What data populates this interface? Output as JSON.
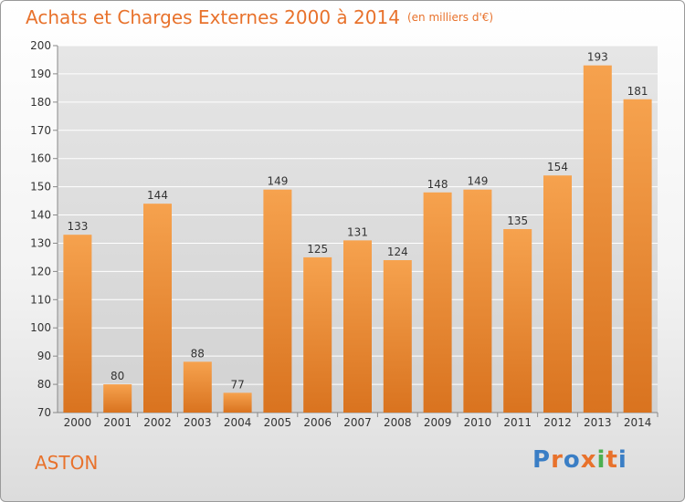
{
  "header": {
    "title": "Achats et Charges Externes 2000 à 2014",
    "subtitle": "(en milliers d'€)"
  },
  "footer": {
    "city": "ASTON",
    "logo": [
      "P",
      "r",
      "o",
      "x",
      "i",
      "t",
      "i"
    ],
    "logo_colors": [
      "#3a7ec5",
      "#e8722c",
      "#3a7ec5",
      "#e8722c",
      "#4caf50",
      "#e8722c",
      "#3a7ec5"
    ]
  },
  "colors": {
    "accent": "#e8722c",
    "bar_top": "#f6a24e",
    "bar_bottom": "#d9731f",
    "grid": "#ffffff",
    "axis_text": "#333333"
  },
  "chart_data": {
    "type": "bar",
    "categories": [
      "2000",
      "2001",
      "2002",
      "2003",
      "2004",
      "2005",
      "2006",
      "2007",
      "2008",
      "2009",
      "2010",
      "2011",
      "2012",
      "2013",
      "2014"
    ],
    "values": [
      133,
      80,
      144,
      88,
      77,
      149,
      125,
      131,
      124,
      148,
      149,
      135,
      154,
      193,
      181
    ],
    "ylim": [
      70,
      200
    ],
    "yticks": [
      70,
      80,
      90,
      100,
      110,
      120,
      130,
      140,
      150,
      160,
      170,
      180,
      190,
      200
    ],
    "grid": true,
    "data_labels": true
  }
}
